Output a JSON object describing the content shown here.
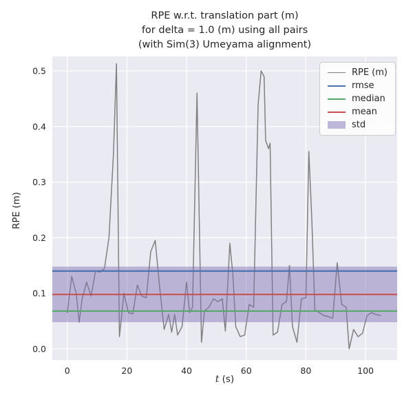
{
  "chart_data": {
    "type": "line",
    "title": "RPE w.r.t. translation part (m) for delta = 1.0 (m) using all pairs (with Sim(3) Umeyama alignment)",
    "title_lines": [
      "RPE w.r.t. translation part (m)",
      "for delta = 1.0 (m) using all pairs",
      "(with Sim(3) Umeyama alignment)"
    ],
    "xlabel_var": "t",
    "xlabel_unit": " (s)",
    "ylabel": "RPE (m)",
    "xlim": [
      -5,
      110.6
    ],
    "ylim": [
      -0.02,
      0.526
    ],
    "grid": true,
    "legend_position": "upper right",
    "plot_bg": "#EAEAF2",
    "grid_color": "#FFFFFF",
    "xticks": [
      0,
      20,
      40,
      60,
      80,
      100
    ],
    "xtick_labels": [
      "0",
      "20",
      "40",
      "60",
      "80",
      "100"
    ],
    "yticks": [
      0.0,
      0.1,
      0.2,
      0.3,
      0.4,
      0.5
    ],
    "ytick_labels": [
      "0.0",
      "0.1",
      "0.2",
      "0.3",
      "0.4",
      "0.5"
    ],
    "series": {
      "name": "RPE (m)",
      "color": "#808080",
      "x": [
        0,
        1.5,
        3,
        4,
        5,
        6.5,
        8,
        9.5,
        11,
        12.5,
        14,
        15.5,
        16.5,
        17.5,
        19,
        20.5,
        22,
        23.5,
        25,
        26.5,
        28,
        29.5,
        31,
        32.5,
        34,
        35,
        36,
        37,
        38.5,
        40,
        41,
        42,
        43.5,
        45,
        46,
        47.5,
        49,
        50.5,
        52,
        53,
        54.5,
        55.5,
        56.5,
        58,
        59.5,
        61,
        62.5,
        64,
        65,
        66,
        66.5,
        67.5,
        68,
        69,
        70.5,
        72,
        73.5,
        74.5,
        75.5,
        77,
        78.5,
        80,
        81,
        82,
        83,
        84.5,
        86,
        87.5,
        89,
        90.5,
        92,
        93.5,
        94.5,
        96,
        97.5,
        99,
        100.5,
        102,
        103.5,
        105
      ],
      "y": [
        0.065,
        0.13,
        0.1,
        0.048,
        0.09,
        0.12,
        0.095,
        0.14,
        0.138,
        0.145,
        0.2,
        0.35,
        0.513,
        0.022,
        0.1,
        0.065,
        0.063,
        0.115,
        0.095,
        0.092,
        0.175,
        0.195,
        0.11,
        0.035,
        0.062,
        0.03,
        0.062,
        0.025,
        0.04,
        0.12,
        0.065,
        0.075,
        0.46,
        0.012,
        0.068,
        0.075,
        0.09,
        0.085,
        0.09,
        0.032,
        0.19,
        0.135,
        0.04,
        0.022,
        0.025,
        0.08,
        0.075,
        0.44,
        0.5,
        0.49,
        0.375,
        0.36,
        0.37,
        0.025,
        0.03,
        0.08,
        0.085,
        0.15,
        0.04,
        0.012,
        0.09,
        0.092,
        0.355,
        0.23,
        0.07,
        0.065,
        0.06,
        0.058,
        0.055,
        0.155,
        0.08,
        0.075,
        0.0,
        0.035,
        0.022,
        0.028,
        0.06,
        0.065,
        0.062,
        0.06
      ]
    },
    "stat_lines": [
      {
        "key": "rmse",
        "name": "rmse",
        "value": 0.14,
        "color": "#4C72B0"
      },
      {
        "key": "median",
        "name": "median",
        "value": 0.068,
        "color": "#55A868"
      },
      {
        "key": "mean",
        "name": "mean",
        "value": 0.098,
        "color": "#C44E52"
      }
    ],
    "std_band": {
      "key": "std",
      "name": "std",
      "lower": 0.048,
      "upper": 0.148,
      "color": "#8172B2",
      "alpha": 0.45
    },
    "legend": [
      "RPE (m)",
      "rmse",
      "median",
      "mean",
      "std"
    ]
  }
}
